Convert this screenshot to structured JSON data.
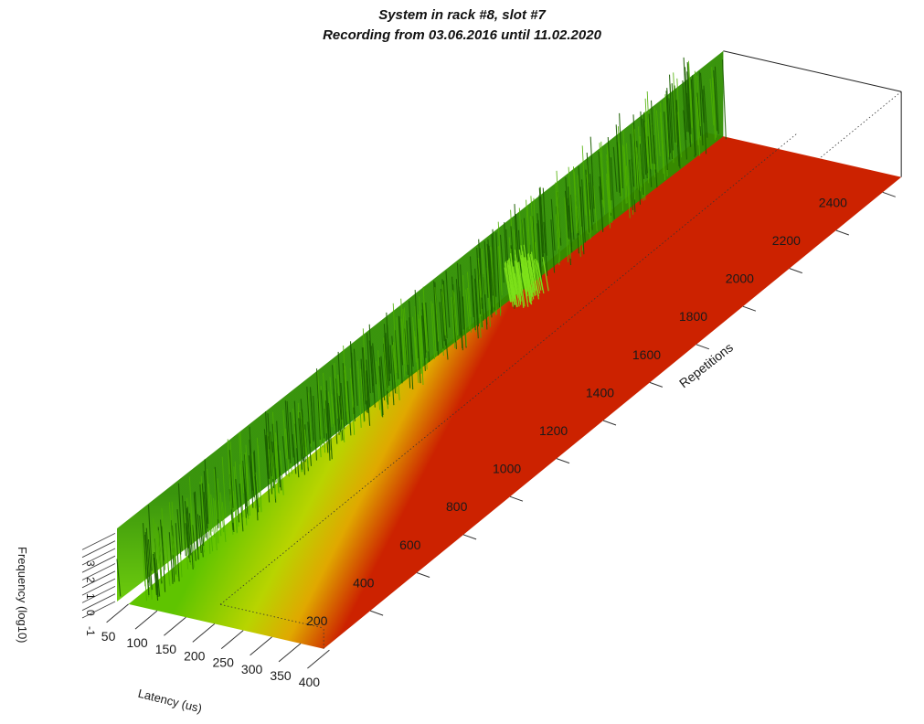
{
  "chart_data": {
    "type": "surface-3d",
    "title": "System in rack #8, slot #7",
    "subtitle": "Recording from 03.06.2016 until 11.02.2020",
    "x_axis": {
      "label": "Latency (us)",
      "ticks": [
        50,
        100,
        150,
        200,
        250,
        300,
        350,
        400
      ],
      "range": [
        30,
        420
      ]
    },
    "y_axis": {
      "label": "Repetitions",
      "ticks": [
        200,
        400,
        600,
        800,
        1000,
        1200,
        1400,
        1600,
        1800,
        2000,
        2200,
        2400
      ],
      "range": [
        0,
        2480
      ]
    },
    "z_axis": {
      "label": "Frequency (log10)",
      "ticks": [
        -1,
        0,
        1,
        2,
        3,
        4,
        5
      ],
      "range": [
        -1,
        5.5
      ]
    },
    "colormap": [
      "#cc2200",
      "#e07a00",
      "#d4d400",
      "#66cc00",
      "#1e7a00"
    ],
    "spike_region": {
      "latency_range": [
        30,
        80
      ],
      "repetitions_range": [
        0,
        2480
      ]
    },
    "bright_patch": {
      "repetitions_range": [
        1560,
        1660
      ]
    }
  }
}
